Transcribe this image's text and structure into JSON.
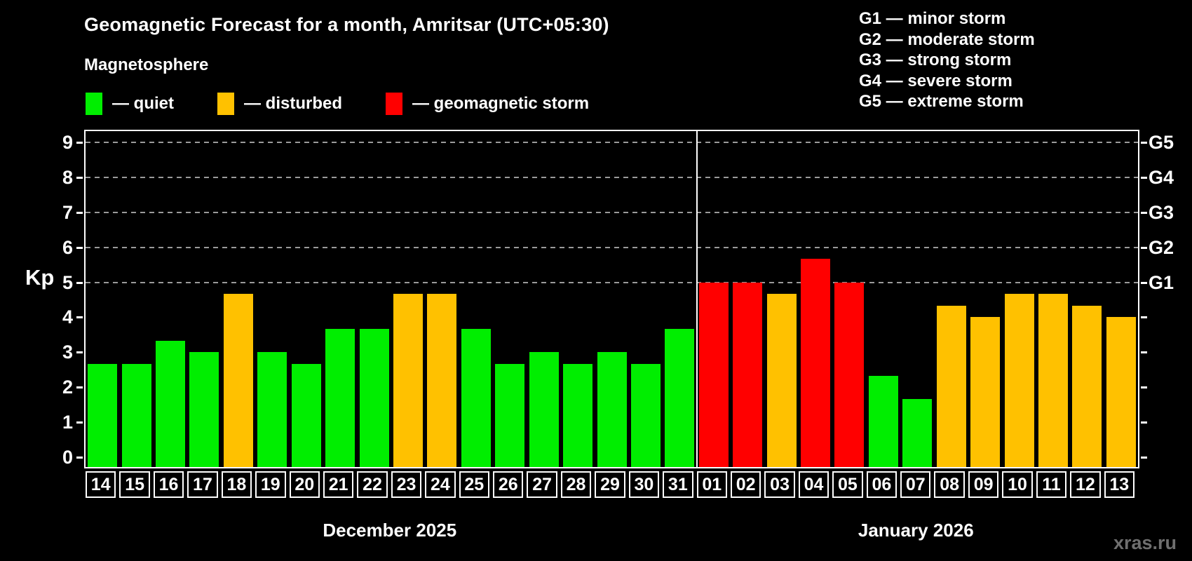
{
  "header": {
    "title": "Geomagnetic Forecast for a month, Amritsar (UTC+05:30)",
    "subtitle": "Magnetosphere"
  },
  "legend": [
    {
      "key": "quiet",
      "label": "— quiet",
      "color": "#00ee00"
    },
    {
      "key": "disturbed",
      "label": "— disturbed",
      "color": "#ffc100"
    },
    {
      "key": "storm",
      "label": "— geomagnetic storm",
      "color": "#ff0000"
    }
  ],
  "g_scale": [
    {
      "label": "G1 — minor storm"
    },
    {
      "label": "G2 — moderate storm"
    },
    {
      "label": "G3 — strong storm"
    },
    {
      "label": "G4 — severe storm"
    },
    {
      "label": "G5 — extreme storm"
    }
  ],
  "chart_data": {
    "type": "bar",
    "ylabel": "Kp",
    "ylim": [
      0,
      9
    ],
    "yticks_left": [
      0,
      1,
      2,
      3,
      4,
      5,
      6,
      7,
      8,
      9
    ],
    "grid_values": [
      5,
      6,
      7,
      8,
      9
    ],
    "right_axis": [
      {
        "value": 5,
        "label": "G1"
      },
      {
        "value": 6,
        "label": "G2"
      },
      {
        "value": 7,
        "label": "G3"
      },
      {
        "value": 8,
        "label": "G4"
      },
      {
        "value": 9,
        "label": "G5"
      }
    ],
    "series_colors": {
      "quiet": "#00ee00",
      "disturbed": "#ffc100",
      "storm": "#ff0000"
    },
    "months": [
      {
        "label": "December 2025",
        "days": [
          {
            "day": "14",
            "kp": 2.67,
            "level": "quiet"
          },
          {
            "day": "15",
            "kp": 2.67,
            "level": "quiet"
          },
          {
            "day": "16",
            "kp": 3.33,
            "level": "quiet"
          },
          {
            "day": "17",
            "kp": 3.0,
            "level": "quiet"
          },
          {
            "day": "18",
            "kp": 4.67,
            "level": "disturbed"
          },
          {
            "day": "19",
            "kp": 3.0,
            "level": "quiet"
          },
          {
            "day": "20",
            "kp": 2.67,
            "level": "quiet"
          },
          {
            "day": "21",
            "kp": 3.67,
            "level": "quiet"
          },
          {
            "day": "22",
            "kp": 3.67,
            "level": "quiet"
          },
          {
            "day": "23",
            "kp": 4.67,
            "level": "disturbed"
          },
          {
            "day": "24",
            "kp": 4.67,
            "level": "disturbed"
          },
          {
            "day": "25",
            "kp": 3.67,
            "level": "quiet"
          },
          {
            "day": "26",
            "kp": 2.67,
            "level": "quiet"
          },
          {
            "day": "27",
            "kp": 3.0,
            "level": "quiet"
          },
          {
            "day": "28",
            "kp": 2.67,
            "level": "quiet"
          },
          {
            "day": "29",
            "kp": 3.0,
            "level": "quiet"
          },
          {
            "day": "30",
            "kp": 2.67,
            "level": "quiet"
          },
          {
            "day": "31",
            "kp": 3.67,
            "level": "quiet"
          }
        ]
      },
      {
        "label": "January 2026",
        "days": [
          {
            "day": "01",
            "kp": 5.0,
            "level": "storm"
          },
          {
            "day": "02",
            "kp": 5.0,
            "level": "storm"
          },
          {
            "day": "03",
            "kp": 4.67,
            "level": "disturbed"
          },
          {
            "day": "04",
            "kp": 5.67,
            "level": "storm"
          },
          {
            "day": "05",
            "kp": 5.0,
            "level": "storm"
          },
          {
            "day": "06",
            "kp": 2.33,
            "level": "quiet"
          },
          {
            "day": "07",
            "kp": 1.67,
            "level": "quiet"
          },
          {
            "day": "08",
            "kp": 4.33,
            "level": "disturbed"
          },
          {
            "day": "09",
            "kp": 4.0,
            "level": "disturbed"
          },
          {
            "day": "10",
            "kp": 4.67,
            "level": "disturbed"
          },
          {
            "day": "11",
            "kp": 4.67,
            "level": "disturbed"
          },
          {
            "day": "12",
            "kp": 4.33,
            "level": "disturbed"
          },
          {
            "day": "13",
            "kp": 4.0,
            "level": "disturbed"
          }
        ]
      }
    ]
  },
  "watermark": "xras.ru"
}
